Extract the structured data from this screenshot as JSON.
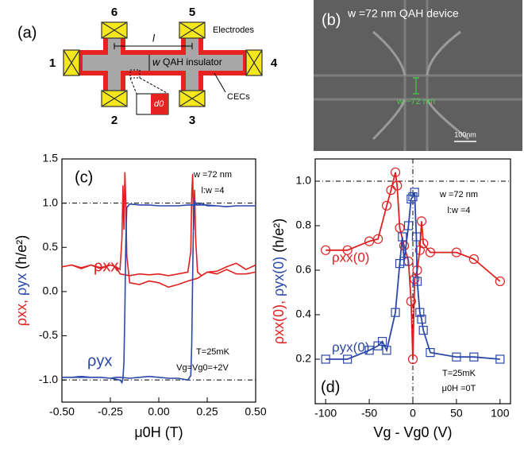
{
  "diagram": {
    "panel_label": "(a)",
    "terminals": [
      "1",
      "2",
      "3",
      "4",
      "5",
      "6"
    ],
    "length_label": "l",
    "width_label": "w",
    "bar_label": "QAH insulator",
    "electrode_label": "Electrodes",
    "edge_label": "CECs",
    "inset_label": "d0"
  },
  "image": {
    "panel_label": "(b)",
    "title": "w =72 nm QAH device",
    "width_label": "w ~72 nm",
    "scale_label": "100nm"
  },
  "chart_data": [
    {
      "type": "line",
      "panel_label": "(c)",
      "xlabel": "μ0H (T)",
      "ylabel": [
        {
          "text": "ρxx,",
          "color": "#e02020"
        },
        {
          "text": "ρyx",
          "color": "#2b48a8"
        },
        {
          "text": "(h/e²)",
          "color": "#000000"
        }
      ],
      "xlim": [
        -0.5,
        0.5
      ],
      "ylim": [
        -1.25,
        1.5
      ],
      "xticks": [
        {
          "value": -0.5,
          "label": "-0.50"
        },
        {
          "value": -0.25,
          "label": "-0.25"
        },
        {
          "value": 0,
          "label": "0.00"
        },
        {
          "value": 0.25,
          "label": "0.25"
        },
        {
          "value": 0.5,
          "label": "0.50"
        }
      ],
      "yticks": [
        {
          "value": -1,
          "label": "-1.0"
        },
        {
          "value": -0.5,
          "label": "-0.5"
        },
        {
          "value": 0,
          "label": "0.0"
        },
        {
          "value": 0.5,
          "label": "0.5"
        },
        {
          "value": 1,
          "label": "1.0"
        },
        {
          "value": 1.5,
          "label": "1.5"
        }
      ],
      "hlines": [
        1,
        -1
      ],
      "annotations": [
        "w =72 nm",
        "l:w =4",
        "T=25mK",
        "Vg=Vg0=+2V"
      ],
      "series": [
        {
          "name": "ρxx",
          "color": "#e02020",
          "x": [
            -0.5,
            -0.45,
            -0.4,
            -0.35,
            -0.3,
            -0.25,
            -0.22,
            -0.2,
            -0.15,
            -0.1,
            -0.05,
            0,
            0.05,
            0.1,
            0.15,
            0.165,
            0.17,
            0.175,
            0.18,
            0.185,
            0.19,
            0.2,
            0.22,
            0.25,
            0.3,
            0.35,
            0.4,
            0.45,
            0.5,
            null,
            0.5,
            0.45,
            0.4,
            0.35,
            0.3,
            0.25,
            0.2,
            0.15,
            0.1,
            0.05,
            0,
            -0.05,
            -0.1,
            -0.15,
            -0.165,
            -0.17,
            -0.175,
            -0.18,
            -0.185,
            -0.19,
            -0.2,
            -0.22,
            -0.25,
            -0.3,
            -0.35,
            -0.4,
            -0.45,
            -0.5
          ],
          "values": [
            0.28,
            0.3,
            0.26,
            0.3,
            0.27,
            0.3,
            0.28,
            0.2,
            0.18,
            0.2,
            0.19,
            0.2,
            0.18,
            0.2,
            0.22,
            0.45,
            1.1,
            1.33,
            0.7,
            1.15,
            0.6,
            0.22,
            0.18,
            0.22,
            0.23,
            0.28,
            0.32,
            0.25,
            0.3,
            null,
            0.22,
            0.2,
            0.2,
            0.25,
            0.2,
            0.22,
            0.15,
            0.12,
            0.08,
            0.05,
            0.1,
            0.12,
            0.08,
            0.1,
            0.4,
            1.0,
            1.35,
            0.7,
            1.2,
            0.6,
            0.25,
            0.28,
            0.3,
            0.26,
            0.3,
            0.27,
            0.3,
            0.28
          ]
        },
        {
          "name": "ρyx",
          "color": "#2b48a8",
          "x": [
            -0.5,
            -0.45,
            -0.4,
            -0.35,
            -0.3,
            -0.25,
            -0.22,
            -0.2,
            -0.15,
            -0.1,
            -0.05,
            0,
            0.05,
            0.1,
            0.15,
            0.165,
            0.17,
            0.175,
            0.18,
            0.185,
            0.19,
            0.2,
            0.22,
            0.25,
            0.3,
            0.35,
            0.4,
            0.45,
            0.5,
            null,
            0.5,
            0.45,
            0.4,
            0.35,
            0.3,
            0.25,
            0.2,
            0.15,
            0.1,
            0.05,
            0,
            -0.05,
            -0.1,
            -0.15,
            -0.165,
            -0.17,
            -0.175,
            -0.18,
            -0.185,
            -0.19,
            -0.2,
            -0.22,
            -0.25,
            -0.3,
            -0.35,
            -0.4,
            -0.45,
            -0.5
          ],
          "values": [
            -0.97,
            -0.97,
            -0.96,
            -0.97,
            -0.97,
            -0.98,
            -0.97,
            -0.97,
            -0.98,
            -0.97,
            -0.96,
            -0.97,
            -0.98,
            -0.98,
            -1.0,
            -0.95,
            -0.6,
            0.2,
            0.9,
            1.03,
            1.0,
            0.98,
            1.0,
            0.97,
            0.97,
            0.96,
            0.97,
            0.97,
            0.97,
            null,
            0.97,
            0.97,
            0.97,
            0.96,
            0.97,
            0.98,
            0.98,
            0.98,
            0.97,
            0.97,
            0.97,
            0.98,
            0.98,
            0.99,
            0.95,
            0.6,
            -0.2,
            -0.8,
            -0.98,
            -1.03,
            -1.0,
            -0.99,
            -0.98,
            -0.97,
            -0.97,
            -0.97,
            -0.97,
            -0.97
          ]
        }
      ]
    },
    {
      "type": "scatter",
      "panel_label": "(d)",
      "xlabel": "Vg - Vg0 (V)",
      "ylabel": [
        {
          "text": "ρxx(0),",
          "color": "#e02020"
        },
        {
          "text": "ρyx(0)",
          "color": "#2b48a8"
        },
        {
          "text": "(h/e²)",
          "color": "#000000"
        }
      ],
      "xlim": [
        -112,
        112
      ],
      "ylim": [
        0,
        1.1
      ],
      "xticks": [
        -100,
        -50,
        0,
        50,
        100
      ],
      "yticks": [
        0.2,
        0.4,
        0.6,
        0.8,
        {
          "value": 1,
          "label": "1.0"
        }
      ],
      "hlines": [
        1
      ],
      "vlines": [
        0
      ],
      "annotations": [
        "w =72 nm",
        "l:w =4",
        "T=25mK",
        "μ0H =0T"
      ],
      "series": [
        {
          "name": "ρxx(0)",
          "color": "#e02020",
          "marker": "circle",
          "x": [
            -100,
            -75,
            -50,
            -40,
            -30,
            -25,
            -20,
            -18,
            -15,
            -10,
            -5,
            -2,
            0,
            2,
            5,
            8,
            10,
            12,
            20,
            50,
            70,
            100
          ],
          "values": [
            0.69,
            0.69,
            0.73,
            0.74,
            0.89,
            0.96,
            1.04,
            0.98,
            0.79,
            0.71,
            0.64,
            0.46,
            0.2,
            0.56,
            0.6,
            0.69,
            0.82,
            0.72,
            0.68,
            0.68,
            0.65,
            0.55
          ]
        },
        {
          "name": "ρyx(0)",
          "color": "#2b48a8",
          "marker": "square",
          "x": [
            -100,
            -75,
            -50,
            -40,
            -35,
            -30,
            -20,
            -15,
            -12,
            -10,
            -5,
            -2,
            0,
            2,
            4,
            5,
            8,
            10,
            12,
            20,
            50,
            70,
            100
          ],
          "values": [
            0.2,
            0.2,
            0.24,
            0.26,
            0.28,
            0.24,
            0.41,
            0.63,
            0.75,
            0.64,
            0.8,
            0.92,
            0.93,
            0.95,
            0.75,
            0.55,
            0.41,
            0.38,
            0.33,
            0.23,
            0.21,
            0.21,
            0.2
          ]
        }
      ]
    }
  ]
}
